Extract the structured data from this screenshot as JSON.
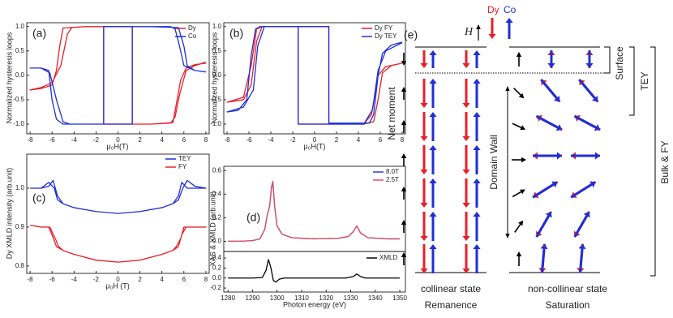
{
  "chart_data": [
    {
      "type": "line",
      "panel": "(a)",
      "ylabel": "Normalized hysteresis loops",
      "xlabel": "μ₀H(T)",
      "xlim": [
        -8.3,
        8.3
      ],
      "ylim": [
        -1.2,
        1.08
      ],
      "xticks": [
        -8,
        -6,
        -4,
        -2,
        0,
        2,
        4,
        6,
        8
      ],
      "yticks": [
        {
          "value": -1,
          "label": "-1.0"
        },
        -0.5,
        {
          "value": 0,
          "label": "0.0"
        },
        0.5,
        {
          "value": 1,
          "label": "1.0"
        }
      ],
      "series": [
        {
          "name": "Dy",
          "color": "#e8202a",
          "x": [
            8,
            7,
            6.2,
            5.6,
            5.2,
            4.8,
            3,
            1.3,
            1.3,
            -1,
            -3,
            -4.2,
            -4.6,
            -5.2,
            -6,
            -7,
            -8,
            -7,
            -6,
            -5.6,
            -5.3,
            -5,
            -3,
            -1.3,
            -1.3,
            1,
            3,
            5,
            5.3,
            5.7,
            6.2,
            7,
            8
          ],
          "values": [
            0.27,
            0.2,
            0.1,
            -0.4,
            -0.85,
            -0.98,
            -1,
            -1,
            1,
            1,
            1,
            0.98,
            0.85,
            0.2,
            -0.15,
            -0.25,
            -0.3,
            -0.27,
            -0.2,
            0.1,
            0.6,
            0.97,
            1,
            1,
            -1,
            -1,
            -1,
            -0.97,
            -0.6,
            -0.1,
            0.15,
            0.22,
            0.25
          ]
        },
        {
          "name": "Co",
          "color": "#1f2fd6",
          "x": [
            8,
            7,
            6,
            5.6,
            5.2,
            4.8,
            1.3,
            1.3,
            -1,
            -4.4,
            -5,
            -5.6,
            -6.2,
            -7,
            -8,
            -7,
            -6.3,
            -6,
            -5.6,
            -5,
            -1.3,
            -1.3,
            3,
            5.5,
            6,
            6.3,
            7,
            8
          ],
          "values": [
            0.07,
            0.1,
            0.2,
            0.6,
            0.95,
            1,
            1,
            -1,
            -1,
            -1,
            -0.95,
            -0.5,
            0.05,
            0.15,
            0.15,
            0.15,
            0.1,
            -0.5,
            -0.9,
            -1,
            -1,
            1,
            1,
            0.98,
            0.6,
            0.2,
            0.1,
            0.07
          ]
        }
      ]
    },
    {
      "type": "line",
      "panel": "(b)",
      "ylabel": "Normalized hysteresis loops",
      "xlabel": "μ₀H(T)",
      "xlim": [
        -8.3,
        8.3
      ],
      "ylim": [
        -1.2,
        1.08
      ],
      "xticks": [
        -8,
        -6,
        -4,
        -2,
        0,
        2,
        4,
        6,
        8
      ],
      "yticks": [
        {
          "value": -1,
          "label": "-1.0"
        },
        -0.5,
        {
          "value": 0,
          "label": "0.0"
        },
        0.5,
        {
          "value": 1,
          "label": "1.0"
        }
      ],
      "series": [
        {
          "name": "Dy FY",
          "color": "#e8202a",
          "x": [
            8,
            7,
            6.2,
            5.8,
            5.4,
            4.5,
            1.3,
            1.3,
            -4.8,
            -5.3,
            -5.8,
            -6.5,
            -8,
            -6.5,
            -5.8,
            -5.3,
            -4.8,
            -1.5,
            -1.5,
            1,
            4.5,
            5.2,
            5.8,
            6.5,
            8
          ],
          "values": [
            0.25,
            0.2,
            0.05,
            -0.5,
            -0.95,
            -1,
            -1,
            1,
            1,
            0.7,
            -0.2,
            -0.5,
            -0.55,
            -0.45,
            0.2,
            0.95,
            1,
            1,
            -1,
            -1,
            -1,
            -0.8,
            0,
            0.18,
            0.25
          ]
        },
        {
          "name": "Dy TEY",
          "color": "#1f2fd6",
          "x": [
            8,
            7,
            6.2,
            5.8,
            5.4,
            5,
            1.3,
            1.3,
            -4.6,
            -5.2,
            -5.6,
            -6.5,
            -8,
            -7,
            -6.2,
            -5.8,
            -5.4,
            -5,
            -1.5,
            -1.5,
            4.5,
            5.3,
            5.8,
            6.5,
            8
          ],
          "values": [
            0.68,
            0.62,
            0.45,
            0,
            -0.8,
            -0.98,
            -0.98,
            1,
            1,
            0.6,
            -0.3,
            -0.65,
            -0.75,
            -0.72,
            -0.5,
            0.4,
            0.95,
            1,
            1,
            -1,
            -1,
            -0.7,
            0.1,
            0.5,
            0.67
          ]
        }
      ]
    },
    {
      "type": "line",
      "panel": "(c)",
      "ylabel": "Dy XMLD intensity (arb.unit)",
      "xlabel": "μ₀H (T)",
      "xlim": [
        -8.3,
        8.3
      ],
      "ylim": [
        0.781,
        1.0875
      ],
      "xticks": [
        -8,
        -6,
        -4,
        -2,
        0,
        2,
        4,
        6,
        8
      ],
      "yticks": [
        0.8,
        0.9,
        {
          "value": 1,
          "label": "1.0"
        }
      ],
      "series": [
        {
          "name": "TEY",
          "color": "#1f2fd6",
          "x": [
            -8,
            -7,
            -6.3,
            -5.9,
            -5.5,
            -5,
            -4,
            -2,
            0,
            2,
            4,
            5,
            5.5,
            5.9,
            6.3,
            7,
            8,
            7,
            6.3,
            5.8,
            5.5,
            5,
            4,
            2,
            0,
            -2,
            -4,
            -5,
            -5.5,
            -5.8,
            -6.3,
            -7,
            -8
          ],
          "values": [
            1.0,
            1.0,
            1.005,
            1.02,
            0.98,
            0.96,
            0.95,
            0.94,
            0.935,
            0.94,
            0.95,
            0.96,
            0.97,
            1.0,
            1.02,
            1.005,
            1.0,
            1.0,
            1.0,
            1.015,
            0.98,
            0.96,
            0.95,
            0.94,
            0.935,
            0.94,
            0.95,
            0.96,
            0.97,
            1.0,
            1.015,
            1.0,
            1.0
          ]
        },
        {
          "name": "FY",
          "color": "#e8202a",
          "x": [
            -8,
            -7,
            -6.3,
            -6,
            -5.6,
            -5,
            -4,
            -2,
            0,
            2,
            4,
            5,
            5.5,
            5.8,
            6.2,
            7,
            8,
            7,
            6,
            5.7,
            5.3,
            5,
            4,
            2,
            0,
            -2,
            -4,
            -5,
            -5.4,
            -5.7,
            -6.2,
            -7,
            -8
          ],
          "values": [
            0.905,
            0.9,
            0.9,
            0.88,
            0.85,
            0.84,
            0.83,
            0.815,
            0.81,
            0.815,
            0.83,
            0.84,
            0.85,
            0.88,
            0.9,
            0.9,
            0.9,
            0.9,
            0.9,
            0.87,
            0.85,
            0.84,
            0.83,
            0.815,
            0.81,
            0.815,
            0.83,
            0.84,
            0.85,
            0.87,
            0.9,
            0.9,
            0.905
          ]
        }
      ]
    },
    {
      "type": "line",
      "panel": "(d)",
      "ylabel": "XAS & XMLD (arb.unit)",
      "xlim": [
        1278.3,
        1352.3
      ],
      "ylim": [
        -0.087,
        0.636
      ],
      "yticks": [
        {
          "value": 0,
          "label": "0.0"
        },
        0.2,
        0.4,
        0.6
      ],
      "series": [
        {
          "name": "8.0T",
          "color": "#2b3bd9",
          "x": [
            1280,
            1285,
            1290,
            1293,
            1295,
            1296,
            1297,
            1297.7,
            1298.3,
            1299,
            1300,
            1302,
            1306,
            1315,
            1325,
            1329,
            1331,
            1332.5,
            1334,
            1337,
            1345,
            1350
          ],
          "values": [
            0,
            0,
            0.005,
            0.02,
            0.1,
            0.22,
            0.3,
            0.45,
            0.5,
            0.3,
            0.13,
            0.06,
            0.03,
            0.02,
            0.025,
            0.04,
            0.08,
            0.13,
            0.07,
            0.03,
            0.02,
            0.02
          ]
        },
        {
          "name": "2.5T",
          "color": "#e05060",
          "x": [
            1280,
            1285,
            1290,
            1293,
            1295,
            1296,
            1297,
            1297.7,
            1298.3,
            1299,
            1300,
            1302,
            1306,
            1315,
            1325,
            1329,
            1331,
            1332.5,
            1334,
            1337,
            1345,
            1350
          ],
          "values": [
            0,
            0,
            0.005,
            0.02,
            0.1,
            0.22,
            0.3,
            0.46,
            0.51,
            0.3,
            0.13,
            0.06,
            0.03,
            0.02,
            0.025,
            0.04,
            0.08,
            0.13,
            0.07,
            0.03,
            0.02,
            0.02
          ]
        }
      ]
    },
    {
      "type": "line",
      "xlabel": "Photon energy (eV)",
      "xlim": [
        1278.3,
        1352.3
      ],
      "ylim": [
        -0.28,
        0.53
      ],
      "xticks": [
        1280,
        1290,
        1300,
        1310,
        1320,
        1330,
        1340,
        1350
      ],
      "yticks": [
        -0.2,
        {
          "value": 0,
          "label": "0.0"
        },
        0.2,
        0.4
      ],
      "series": [
        {
          "name": "XMLD",
          "color": "#000000",
          "x": [
            1280,
            1290,
            1294,
            1295.5,
            1296.5,
            1297.5,
            1298.5,
            1299.5,
            1301,
            1303,
            1310,
            1320,
            1328,
            1331,
            1332.5,
            1334,
            1336,
            1340,
            1350
          ],
          "values": [
            0,
            0,
            0.01,
            0.15,
            0.37,
            0.2,
            -0.05,
            -0.08,
            -0.02,
            0,
            0,
            0,
            0,
            0.03,
            0.08,
            0.03,
            0,
            0,
            0
          ]
        }
      ]
    }
  ],
  "diagram": {
    "panel": "(e)",
    "field": "H⃗",
    "dy": "Dy",
    "co": "Co",
    "net_moment": "Net moment",
    "domain_wall": "Domain Wall",
    "surface": "Surface",
    "tey": "TEY",
    "bulk_fy": "Bulk & FY",
    "left_state": "collinear state",
    "left_condition": "Remanence",
    "right_state": "non-collinear state",
    "right_condition": "Saturation"
  }
}
